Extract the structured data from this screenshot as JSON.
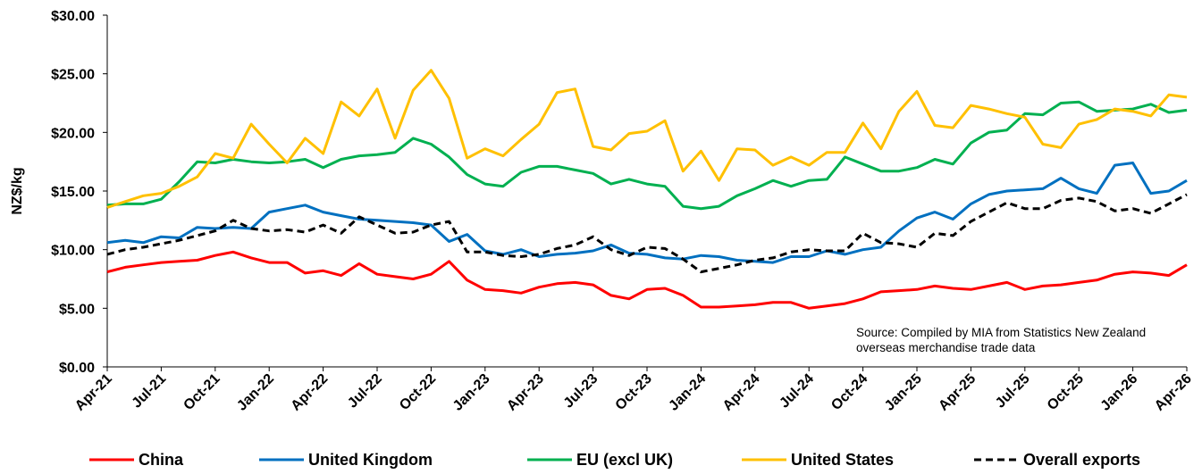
{
  "chart_data": {
    "type": "line",
    "y_label": "NZ$/kg",
    "annotation": "Source: Compiled by MIA from Statistics New Zealand overseas merchandise trade data",
    "categories": [
      "Apr-21",
      null,
      null,
      "Jul-21",
      null,
      null,
      "Oct-21",
      null,
      null,
      "Jan-22",
      null,
      null,
      "Apr-22",
      null,
      null,
      "Jul-22",
      null,
      null,
      "Oct-22",
      null,
      null,
      "Jan-23",
      null,
      null,
      "Apr-23",
      null,
      null,
      "Jul-23",
      null,
      null,
      "Oct-23",
      null,
      null,
      "Jan-24",
      null,
      null,
      "Apr-24",
      null,
      null,
      "Jul-24",
      null,
      null,
      "Oct-24",
      null,
      null,
      "Jan-25",
      null,
      null,
      "Apr-25",
      null,
      null,
      "Jul-25",
      null,
      null,
      "Oct-25",
      null,
      null,
      "Jan-26",
      null,
      null,
      "Apr-26"
    ],
    "ylim": [
      0,
      30
    ],
    "yticks": [
      {
        "value": 0,
        "label": "$0.00"
      },
      {
        "value": 5,
        "label": "$5.00"
      },
      {
        "value": 10,
        "label": "$10.00"
      },
      {
        "value": 15,
        "label": "$15.00"
      },
      {
        "value": 20,
        "label": "$20.00"
      },
      {
        "value": 25,
        "label": "$25.00"
      },
      {
        "value": 30,
        "label": "$30.00"
      }
    ],
    "grid": false,
    "legend": "bottom",
    "series": [
      {
        "name": "China",
        "color": "#ff0000",
        "linestyle": "solid",
        "values": [
          8.1,
          8.5,
          8.7,
          8.9,
          9.0,
          9.1,
          9.5,
          9.8,
          9.3,
          8.9,
          8.9,
          8.0,
          8.2,
          7.8,
          8.8,
          7.9,
          7.7,
          7.5,
          7.9,
          9.0,
          7.4,
          6.6,
          6.5,
          6.3,
          6.8,
          7.1,
          7.2,
          7.0,
          6.1,
          5.8,
          6.6,
          6.7,
          6.1,
          5.1,
          5.1,
          5.2,
          5.3,
          5.5,
          5.5,
          5.0,
          5.2,
          5.4,
          5.8,
          6.4,
          6.5,
          6.6,
          6.9,
          6.7,
          6.6,
          6.9,
          7.2,
          6.6,
          6.9,
          7.0,
          7.2,
          7.4,
          7.9,
          8.1,
          8.0,
          7.8,
          8.7
        ]
      },
      {
        "name": "United Kingdom",
        "color": "#0070c0",
        "linestyle": "solid",
        "values": [
          10.6,
          10.8,
          10.6,
          11.1,
          11.0,
          11.9,
          11.8,
          11.9,
          11.8,
          13.2,
          13.5,
          13.8,
          13.2,
          12.9,
          12.6,
          12.5,
          12.4,
          12.3,
          12.1,
          10.7,
          11.3,
          9.9,
          9.6,
          10.0,
          9.4,
          9.6,
          9.7,
          9.9,
          10.4,
          9.7,
          9.6,
          9.3,
          9.2,
          9.5,
          9.4,
          9.1,
          9.0,
          8.9,
          9.4,
          9.4,
          9.9,
          9.6,
          10.0,
          10.2,
          11.6,
          12.7,
          13.2,
          12.6,
          13.9,
          14.7,
          15.0,
          15.1,
          15.2,
          16.1,
          15.2,
          14.8,
          17.2,
          17.4,
          14.8,
          15.0,
          15.9
        ]
      },
      {
        "name": "EU (excl UK)",
        "color": "#00b050",
        "linestyle": "solid",
        "values": [
          13.8,
          13.9,
          13.9,
          14.3,
          15.8,
          17.5,
          17.4,
          17.7,
          17.5,
          17.4,
          17.5,
          17.7,
          17.0,
          17.7,
          18.0,
          18.1,
          18.3,
          19.5,
          19.0,
          17.9,
          16.4,
          15.6,
          15.4,
          16.6,
          17.1,
          17.1,
          16.8,
          16.5,
          15.6,
          16.0,
          15.6,
          15.4,
          13.7,
          13.5,
          13.7,
          14.6,
          15.2,
          15.9,
          15.4,
          15.9,
          16.0,
          17.9,
          17.3,
          16.7,
          16.7,
          17.0,
          17.7,
          17.3,
          19.1,
          20.0,
          20.2,
          21.6,
          21.5,
          22.5,
          22.6,
          21.8,
          21.9,
          22.0,
          22.4,
          21.7,
          21.9
        ]
      },
      {
        "name": "United States",
        "color": "#ffc000",
        "linestyle": "solid",
        "values": [
          13.6,
          14.1,
          14.6,
          14.8,
          15.4,
          16.2,
          18.2,
          17.8,
          20.7,
          19.0,
          17.4,
          19.5,
          18.2,
          22.6,
          21.4,
          23.7,
          19.5,
          23.6,
          25.3,
          22.9,
          17.8,
          18.6,
          18.0,
          19.4,
          20.7,
          23.4,
          23.7,
          18.8,
          18.5,
          19.9,
          20.1,
          21.0,
          16.7,
          18.4,
          15.9,
          18.6,
          18.5,
          17.2,
          17.9,
          17.2,
          18.3,
          18.3,
          20.8,
          18.6,
          21.8,
          23.5,
          20.6,
          20.4,
          22.3,
          22.0,
          21.6,
          21.3,
          19.0,
          18.7,
          20.7,
          21.1,
          22.0,
          21.8,
          21.4,
          23.2,
          23.0
        ]
      },
      {
        "name": "Overall exports",
        "color": "#000000",
        "linestyle": "dashed",
        "values": [
          9.6,
          10.0,
          10.2,
          10.5,
          10.8,
          11.2,
          11.6,
          12.5,
          11.8,
          11.6,
          11.7,
          11.5,
          12.1,
          11.4,
          12.8,
          12.1,
          11.4,
          11.5,
          12.1,
          12.4,
          9.8,
          9.8,
          9.5,
          9.4,
          9.6,
          10.1,
          10.4,
          11.1,
          10.0,
          9.5,
          10.2,
          10.1,
          9.2,
          8.1,
          8.4,
          8.7,
          9.1,
          9.3,
          9.8,
          10.0,
          9.9,
          9.9,
          11.4,
          10.6,
          10.5,
          10.2,
          11.4,
          11.2,
          12.4,
          13.2,
          14.0,
          13.5,
          13.5,
          14.2,
          14.4,
          14.1,
          13.3,
          13.5,
          13.1,
          13.9,
          14.7
        ]
      }
    ]
  }
}
